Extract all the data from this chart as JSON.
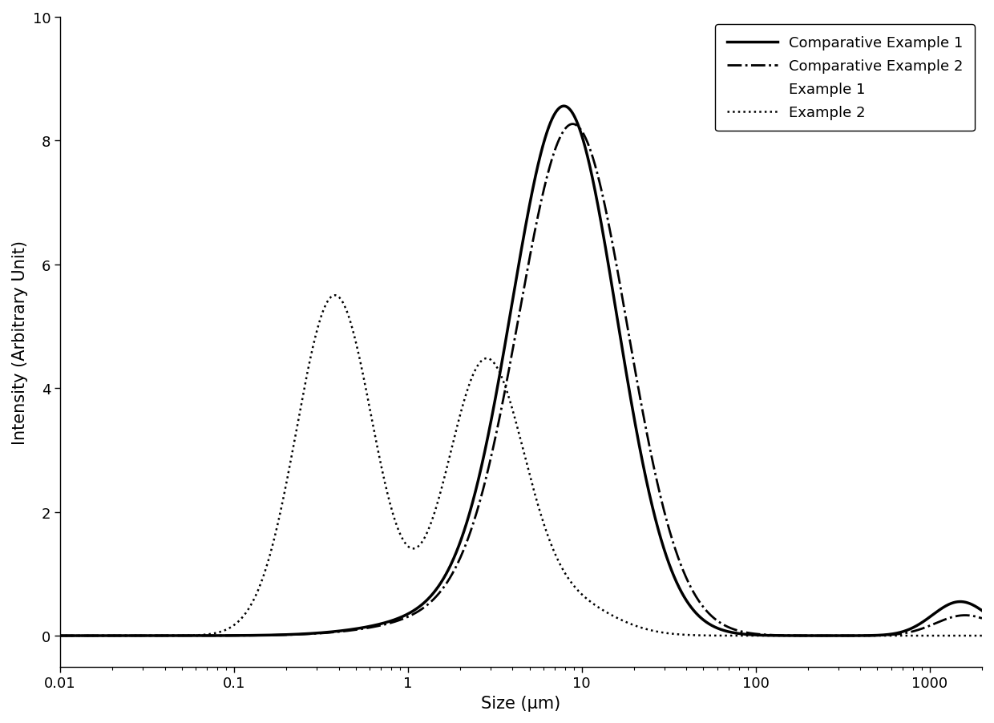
{
  "xlabel": "Size (μm)",
  "ylabel": "Intensity (Arbitrary Unit)",
  "xlim": [
    0.01,
    2000
  ],
  "ylim": [
    -0.5,
    10
  ],
  "yticks": [
    0,
    2,
    4,
    6,
    8,
    10
  ],
  "background_color": "#ffffff",
  "legend_labels": [
    "Comparative Example 1",
    "Comparative Example 2",
    "Example 1",
    "Example 2"
  ],
  "legend_styles": [
    {
      "linestyle": "-",
      "linewidth": 2.5,
      "color": "#000000"
    },
    {
      "linestyle": "-.",
      "linewidth": 2.0,
      "color": "#000000"
    },
    {
      "linestyle": "-",
      "linewidth": 0.0,
      "color": "#000000"
    },
    {
      "linestyle": ":",
      "linewidth": 1.8,
      "color": "#000000"
    }
  ],
  "comp_ex1_peaks": [
    {
      "mu": 8.0,
      "sigma_log": 0.3,
      "amp": 8.3
    },
    {
      "mu": 2.8,
      "sigma_log": 0.45,
      "amp": 0.43
    },
    {
      "mu": 1500,
      "sigma_log": 0.16,
      "amp": 0.55
    }
  ],
  "comp_ex2_peaks": [
    {
      "mu": 9.0,
      "sigma_log": 0.31,
      "amp": 8.0
    },
    {
      "mu": 3.2,
      "sigma_log": 0.46,
      "amp": 0.43
    },
    {
      "mu": 1600,
      "sigma_log": 0.17,
      "amp": 0.33
    }
  ],
  "ex2_peaks": [
    {
      "mu": 0.38,
      "sigma_log": 0.22,
      "amp": 5.5
    },
    {
      "mu": 2.8,
      "sigma_log": 0.22,
      "amp": 4.4
    },
    {
      "mu": 8.5,
      "sigma_log": 0.25,
      "amp": 0.5
    }
  ]
}
